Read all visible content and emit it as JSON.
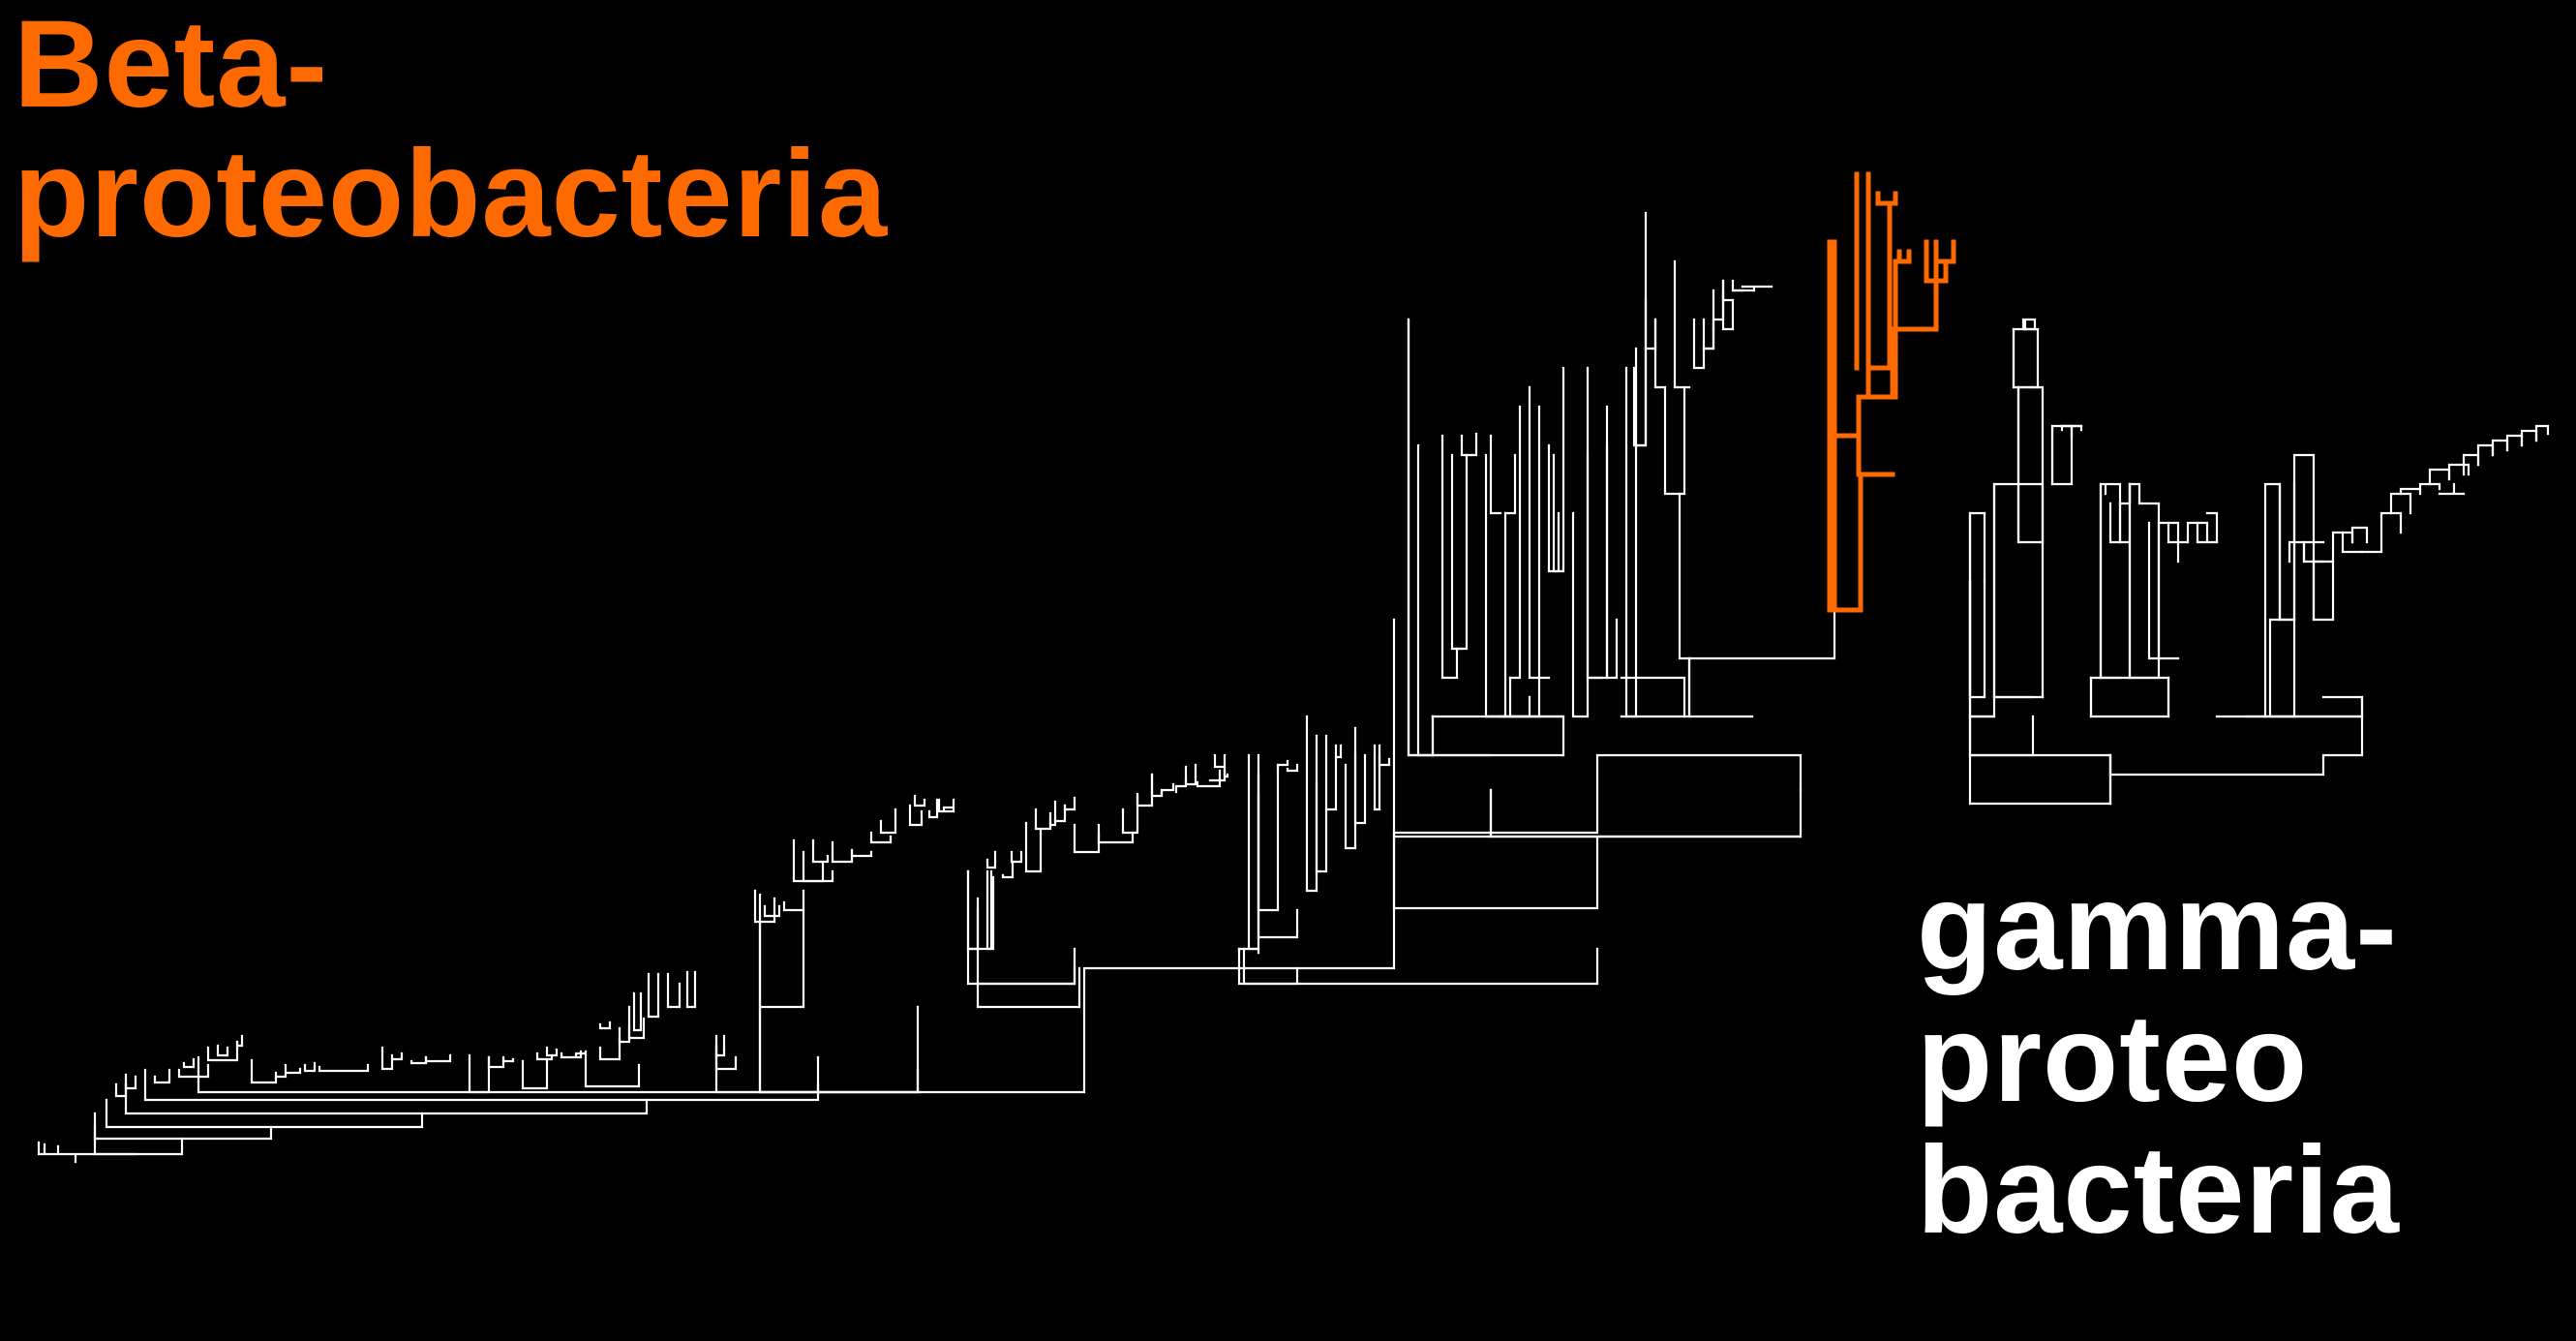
{
  "labels": {
    "beta": {
      "line1": "Beta-",
      "line2": "proteobacteria"
    },
    "gamma": {
      "line1": "gamma-",
      "line2": "proteo",
      "line3": "bacteria"
    }
  },
  "colors": {
    "background": "#000000",
    "beta_highlight": "#ff6a00",
    "gamma_text": "#ffffff",
    "tree_branches": "#ffffff"
  },
  "tree": {
    "type": "phylogenetic-tree",
    "highlighted_clade": "beta"
  }
}
